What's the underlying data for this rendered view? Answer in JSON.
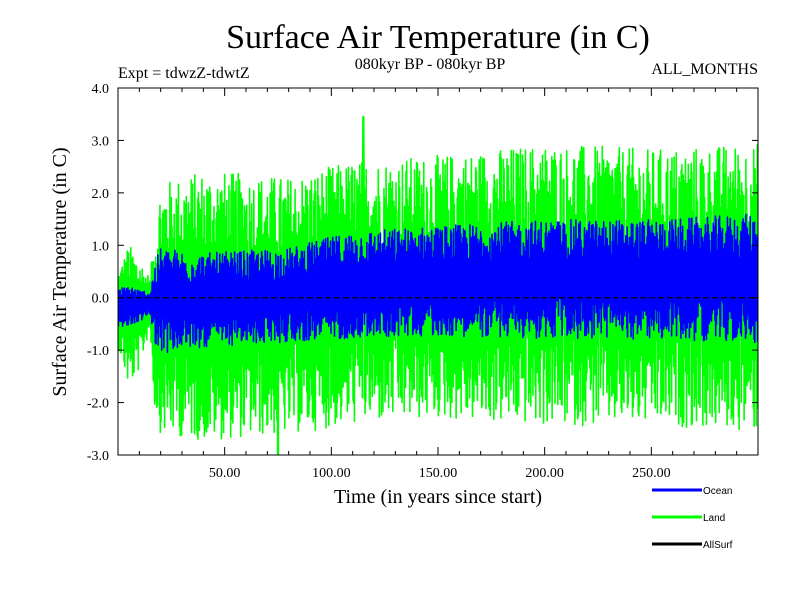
{
  "chart_data": {
    "type": "line",
    "title": "Surface Air Temperature (in C)",
    "subtitle": "080kyr BP - 080kyr BP",
    "experiment": "Expt = tdwzZ-tdwtZ",
    "season": "ALL_MONTHS",
    "xlabel": "Time (in years since start)",
    "ylabel": "Surface Air Temperature (in C)",
    "xlim": [
      0,
      300
    ],
    "ylim": [
      -3.0,
      4.0
    ],
    "x_ticks": [
      50,
      100,
      150,
      200,
      250
    ],
    "x_tick_labels": [
      "50.00",
      "100.00",
      "150.00",
      "200.00",
      "250.00"
    ],
    "y_ticks": [
      -3.0,
      -2.0,
      -1.0,
      0.0,
      1.0,
      2.0,
      3.0,
      4.0
    ],
    "y_tick_labels": [
      "-3.0",
      "-2.0",
      "-1.0",
      "0.0",
      "1.0",
      "2.0",
      "3.0",
      "4.0"
    ],
    "zero_line": 0.0,
    "legend_position": "bottom-right",
    "series": [
      {
        "name": "Land",
        "color": "#00ff00",
        "x_knots": [
          0,
          5,
          10,
          15,
          17,
          20,
          40,
          80,
          110,
          150,
          200,
          250,
          300
        ],
        "envelope_upper": [
          0.4,
          0.8,
          0.6,
          0.3,
          1.0,
          1.8,
          2.0,
          1.9,
          2.2,
          2.3,
          2.5,
          2.4,
          2.5
        ],
        "envelope_lower": [
          -0.8,
          -1.5,
          -1.2,
          -0.5,
          -1.8,
          -2.2,
          -2.3,
          -2.2,
          -2.0,
          -1.9,
          -2.0,
          -2.0,
          -2.1
        ],
        "peak_high": [
          115,
          3.45
        ],
        "peak_low": [
          75,
          -3.0
        ]
      },
      {
        "name": "Ocean",
        "color": "#0000ff",
        "x_knots": [
          0,
          5,
          10,
          15,
          17,
          20,
          40,
          80,
          110,
          150,
          200,
          250,
          300
        ],
        "envelope_upper": [
          0.1,
          0.2,
          0.1,
          0.1,
          0.5,
          0.8,
          0.7,
          0.8,
          1.1,
          1.2,
          1.3,
          1.3,
          1.4
        ],
        "envelope_lower": [
          -0.5,
          -0.5,
          -0.4,
          -0.3,
          -0.7,
          -0.9,
          -0.8,
          -0.7,
          -0.6,
          -0.55,
          -0.6,
          -0.6,
          -0.65
        ]
      },
      {
        "name": "AllSurf",
        "color": "#000000",
        "x_knots": [
          0,
          300
        ],
        "envelope_upper": [
          0.0,
          0.0
        ],
        "envelope_lower": [
          0.0,
          0.0
        ]
      }
    ]
  }
}
